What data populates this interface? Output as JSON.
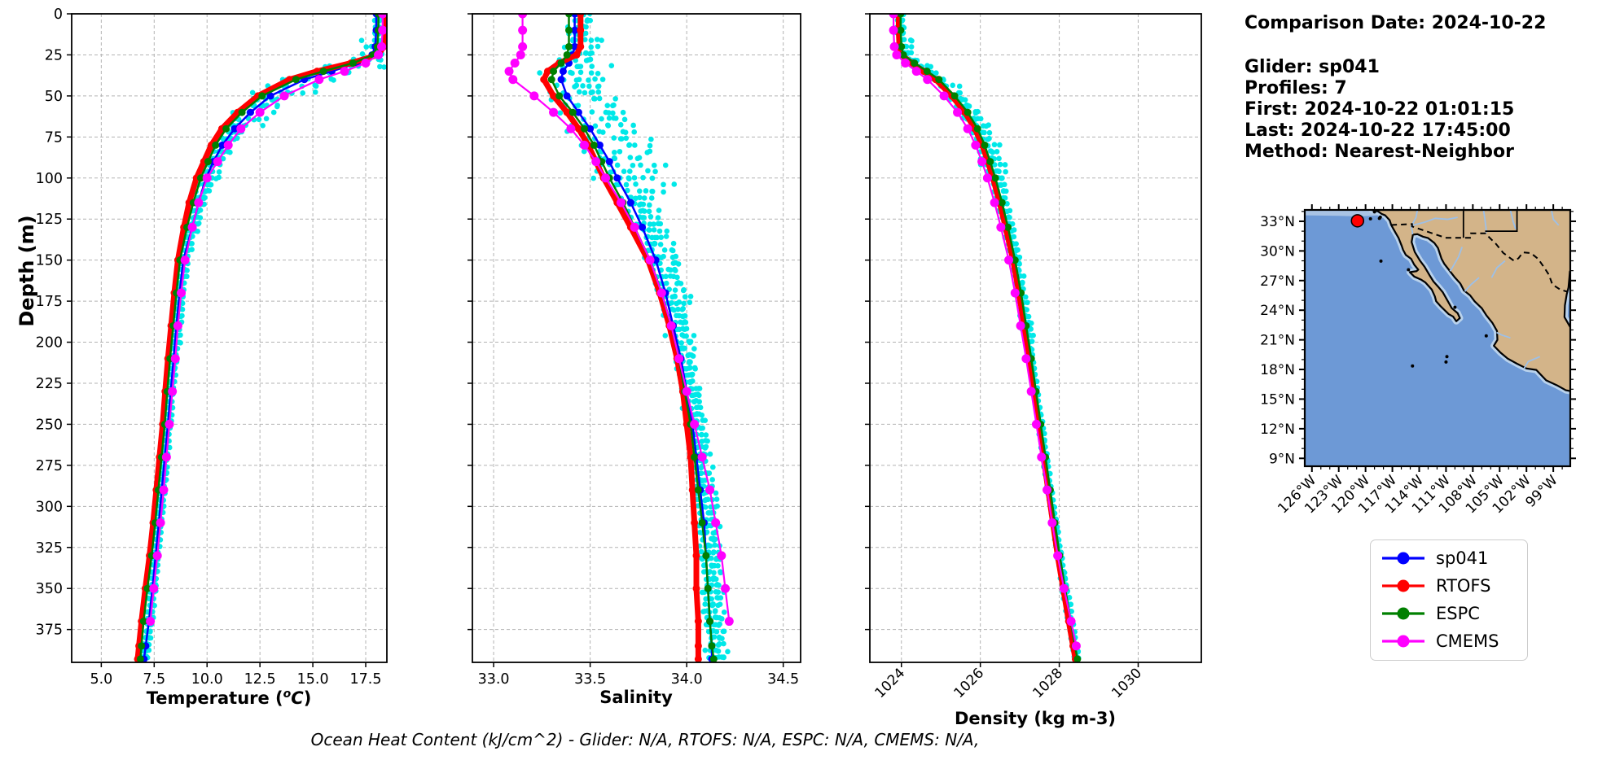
{
  "info_panel": {
    "comparison_date": "Comparison Date: 2024-10-22",
    "glider": "Glider: sp041",
    "profiles": "Profiles: 7",
    "first": "First: 2024-10-22 01:01:15",
    "last": "Last: 2024-10-22 17:45:00",
    "method": "Method: Nearest-Neighbor"
  },
  "caption": "Ocean Heat Content (kJ/cm^2) - Glider: N/A,  RTOFS: N/A,  ESPC: N/A,  CMEMS: N/A,",
  "ylabel": "Depth (m)",
  "colors": {
    "sp041": "#0000ff",
    "rtofs": "#ff0000",
    "espc": "#008000",
    "cmems": "#ff00ff",
    "glider_scatter": "#00e8e8",
    "ocean": "#6d99d6",
    "shallow": "#b9d2ec",
    "coast_band": "#a9c3e4",
    "land": "#d3b489",
    "glider_marker": "#ff0000"
  },
  "legend": {
    "entries": [
      {
        "label": "sp041",
        "color": "#0000ff"
      },
      {
        "label": "RTOFS",
        "color": "#ff0000"
      },
      {
        "label": "ESPC",
        "color": "#008000"
      },
      {
        "label": "CMEMS",
        "color": "#ff00ff"
      }
    ]
  },
  "depths": [
    0,
    10,
    20,
    25,
    30,
    35,
    40,
    50,
    60,
    70,
    80,
    90,
    100,
    115,
    130,
    150,
    170,
    190,
    210,
    230,
    250,
    270,
    290,
    310,
    330,
    350,
    370,
    385,
    393
  ],
  "chart_data": [
    {
      "type": "line",
      "name": "temperature",
      "xlabel": {
        "pre": "Temperature (",
        "sup": "o",
        "it": "C",
        "post": ")"
      },
      "ylabel": "Depth (m)",
      "xlim": [
        3.6,
        18.5
      ],
      "ylim": [
        0,
        395
      ],
      "grid": true,
      "xticks": [
        5.0,
        7.5,
        10.0,
        12.5,
        15.0,
        17.5
      ],
      "xtick_labels": [
        "5.0",
        "7.5",
        "10.0",
        "12.5",
        "15.0",
        "17.5"
      ],
      "yticks": [
        0,
        25,
        50,
        75,
        100,
        125,
        150,
        175,
        200,
        225,
        250,
        275,
        300,
        325,
        350,
        375
      ],
      "ytick_labels": [
        "0",
        "25",
        "50",
        "75",
        "100",
        "125",
        "150",
        "175",
        "200",
        "225",
        "250",
        "275",
        "300",
        "325",
        "350",
        "375"
      ],
      "show_ytick_labels": true,
      "series": [
        {
          "name": "sp041",
          "color": "#0000ff",
          "values": [
            18.0,
            18.0,
            17.95,
            17.8,
            17.1,
            15.9,
            14.6,
            13.0,
            12.05,
            11.3,
            10.72,
            10.3,
            9.95,
            9.6,
            9.3,
            8.88,
            8.7,
            8.55,
            8.42,
            8.28,
            8.15,
            8.0,
            7.86,
            7.72,
            7.57,
            7.42,
            7.25,
            7.1,
            7.02
          ]
        },
        {
          "name": "RTOFS",
          "color": "#ff0000",
          "values": [
            18.4,
            18.4,
            18.35,
            18.1,
            16.8,
            15.2,
            13.9,
            12.4,
            11.45,
            10.7,
            10.2,
            9.85,
            9.5,
            9.15,
            8.9,
            8.62,
            8.45,
            8.3,
            8.15,
            8.02,
            7.9,
            7.75,
            7.6,
            7.45,
            7.28,
            7.08,
            6.9,
            6.78,
            6.72
          ]
        },
        {
          "name": "ESPC",
          "color": "#008000",
          "values": [
            18.1,
            18.1,
            18.05,
            17.85,
            16.9,
            15.5,
            14.2,
            12.6,
            11.65,
            10.9,
            10.4,
            10.05,
            9.7,
            9.35,
            9.05,
            8.72,
            8.55,
            8.4,
            8.25,
            8.12,
            8.0,
            7.85,
            7.7,
            7.55,
            7.38,
            7.18,
            7.0,
            6.9,
            6.85
          ]
        },
        {
          "name": "CMEMS",
          "color": "#ff00ff",
          "values": [
            18.3,
            18.3,
            18.25,
            18.1,
            17.5,
            16.5,
            15.3,
            13.65,
            12.5,
            11.6,
            11.0,
            10.5,
            10.0,
            9.6,
            9.3,
            8.96,
            8.78,
            8.62,
            8.5,
            8.36,
            8.22,
            8.08,
            7.95,
            7.8,
            7.65,
            7.48,
            7.32,
            null,
            null
          ]
        }
      ],
      "scatter": {
        "name": "glider raw profiles",
        "color": "#00e8e8",
        "profiles": 7,
        "seed": 41,
        "amp": [
          [
            15,
            0.18
          ],
          [
            28,
            0.7
          ],
          [
            48,
            1.35
          ],
          [
            70,
            0.85
          ],
          [
            110,
            0.45
          ],
          [
            200,
            0.22
          ],
          [
            395,
            0.14
          ]
        ],
        "skew": 0.2
      }
    },
    {
      "type": "line",
      "name": "salinity",
      "xlabel": {
        "pre": "Salinity",
        "sup": "",
        "it": "",
        "post": ""
      },
      "xlim": [
        32.89,
        34.59
      ],
      "ylim": [
        0,
        395
      ],
      "grid": true,
      "xticks": [
        33.0,
        33.5,
        34.0,
        34.5
      ],
      "xtick_labels": [
        "33.0",
        "33.5",
        "34.0",
        "34.5"
      ],
      "yticks": [
        0,
        25,
        50,
        75,
        100,
        125,
        150,
        175,
        200,
        225,
        250,
        275,
        300,
        325,
        350,
        375
      ],
      "show_ytick_labels": false,
      "series": [
        {
          "name": "sp041",
          "color": "#0000ff",
          "values": [
            33.42,
            33.42,
            33.42,
            33.41,
            33.39,
            33.36,
            33.35,
            33.38,
            33.44,
            33.5,
            33.55,
            33.6,
            33.64,
            33.71,
            33.77,
            33.84,
            33.89,
            33.93,
            33.97,
            34.0,
            34.03,
            34.05,
            34.07,
            34.09,
            34.1,
            34.11,
            34.12,
            34.13,
            34.13
          ]
        },
        {
          "name": "RTOFS",
          "color": "#ff0000",
          "values": [
            33.45,
            33.45,
            33.45,
            33.43,
            33.34,
            33.28,
            33.26,
            33.31,
            33.38,
            33.44,
            33.49,
            33.53,
            33.57,
            33.64,
            33.71,
            33.8,
            33.86,
            33.91,
            33.95,
            33.98,
            34.0,
            34.02,
            34.03,
            34.04,
            34.05,
            34.05,
            34.06,
            34.06,
            34.06
          ]
        },
        {
          "name": "ESPC",
          "color": "#008000",
          "values": [
            33.39,
            33.39,
            33.39,
            33.38,
            33.35,
            33.31,
            33.3,
            33.34,
            33.41,
            33.47,
            33.52,
            33.56,
            33.6,
            33.67,
            33.73,
            33.81,
            33.87,
            33.92,
            33.96,
            33.99,
            34.02,
            34.04,
            34.06,
            34.08,
            34.1,
            34.11,
            34.12,
            34.13,
            34.14
          ]
        },
        {
          "name": "CMEMS",
          "color": "#ff00ff",
          "values": [
            33.15,
            33.15,
            33.15,
            33.14,
            33.11,
            33.08,
            33.1,
            33.21,
            33.31,
            33.4,
            33.47,
            33.53,
            33.58,
            33.66,
            33.73,
            33.81,
            33.87,
            33.92,
            33.96,
            34.0,
            34.04,
            34.08,
            34.12,
            34.15,
            34.18,
            34.2,
            34.22,
            null,
            null
          ]
        }
      ],
      "scatter": {
        "name": "glider raw profiles",
        "color": "#00e8e8",
        "profiles": 7,
        "seed": 42,
        "amp": [
          [
            15,
            0.06
          ],
          [
            30,
            0.1
          ],
          [
            60,
            0.16
          ],
          [
            110,
            0.18
          ],
          [
            200,
            0.08
          ],
          [
            395,
            0.05
          ]
        ],
        "skew": 0.45
      }
    },
    {
      "type": "line",
      "name": "density",
      "xlabel": {
        "pre": "Density (kg m-3)",
        "sup": "",
        "it": "",
        "post": ""
      },
      "xlim": [
        1023.2,
        1031.6
      ],
      "ylim": [
        0,
        395
      ],
      "grid": true,
      "xticks": [
        1024,
        1026,
        1028,
        1030
      ],
      "xtick_labels": [
        "1024",
        "1026",
        "1028",
        "1030"
      ],
      "xtick_rotation": -45,
      "yticks": [
        0,
        25,
        50,
        75,
        100,
        125,
        150,
        175,
        200,
        225,
        250,
        275,
        300,
        325,
        350,
        375
      ],
      "show_ytick_labels": false,
      "series": [
        {
          "name": "sp041",
          "color": "#0000ff",
          "values": [
            1023.95,
            1023.95,
            1023.97,
            1024.02,
            1024.3,
            1024.62,
            1024.92,
            1025.32,
            1025.65,
            1025.9,
            1026.08,
            1026.22,
            1026.35,
            1026.52,
            1026.67,
            1026.85,
            1027.0,
            1027.13,
            1027.26,
            1027.38,
            1027.5,
            1027.62,
            1027.74,
            1027.86,
            1027.98,
            1028.12,
            1028.26,
            1028.37,
            1028.43
          ]
        },
        {
          "name": "RTOFS",
          "color": "#ff0000",
          "values": [
            1023.93,
            1023.93,
            1023.95,
            1024.0,
            1024.26,
            1024.57,
            1024.87,
            1025.28,
            1025.61,
            1025.86,
            1026.05,
            1026.19,
            1026.32,
            1026.49,
            1026.64,
            1026.83,
            1026.98,
            1027.11,
            1027.24,
            1027.36,
            1027.48,
            1027.6,
            1027.72,
            1027.84,
            1027.96,
            1028.1,
            1028.24,
            1028.35,
            1028.41
          ]
        },
        {
          "name": "ESPC",
          "color": "#008000",
          "values": [
            1023.98,
            1023.98,
            1024.0,
            1024.05,
            1024.33,
            1024.65,
            1024.95,
            1025.35,
            1025.68,
            1025.93,
            1026.11,
            1026.25,
            1026.38,
            1026.55,
            1026.7,
            1026.88,
            1027.03,
            1027.16,
            1027.29,
            1027.41,
            1027.53,
            1027.65,
            1027.77,
            1027.89,
            1028.01,
            1028.15,
            1028.29,
            1028.4,
            1028.46
          ]
        },
        {
          "name": "CMEMS",
          "color": "#ff00ff",
          "values": [
            1023.8,
            1023.8,
            1023.82,
            1023.88,
            1024.1,
            1024.38,
            1024.66,
            1025.08,
            1025.42,
            1025.68,
            1025.88,
            1026.04,
            1026.18,
            1026.36,
            1026.52,
            1026.72,
            1026.88,
            1027.02,
            1027.16,
            1027.29,
            1027.42,
            1027.55,
            1027.69,
            1027.82,
            1027.96,
            1028.12,
            1028.3,
            1028.43,
            null
          ]
        }
      ],
      "scatter": {
        "name": "glider raw profiles",
        "color": "#00e8e8",
        "profiles": 7,
        "seed": 43,
        "amp": [
          [
            15,
            0.08
          ],
          [
            40,
            0.22
          ],
          [
            110,
            0.28
          ],
          [
            200,
            0.12
          ],
          [
            395,
            0.07
          ]
        ],
        "skew": 0.3
      }
    },
    {
      "type": "map",
      "name": "glider-location-map",
      "lat_tick_labels": [
        "33°N",
        "30°N",
        "27°N",
        "24°N",
        "21°N",
        "18°N",
        "15°N",
        "12°N",
        "9°N"
      ],
      "lat_tick_values": [
        33,
        30,
        27,
        24,
        21,
        18,
        15,
        12,
        9
      ],
      "lon_tick_labels": [
        "126°W",
        "123°W",
        "120°W",
        "117°W",
        "114°W",
        "111°W",
        "108°W",
        "105°W",
        "102°W",
        "99°W"
      ],
      "lon_tick_values": [
        126,
        123,
        120,
        117,
        114,
        111,
        108,
        105,
        102,
        99
      ],
      "lon_range_west_to_east": [
        126.8,
        97.1
      ],
      "lat_range_top_to_bottom": [
        34.15,
        8.2
      ],
      "glider_position": {
        "lon": 120.9,
        "lat": 33.05
      }
    }
  ]
}
